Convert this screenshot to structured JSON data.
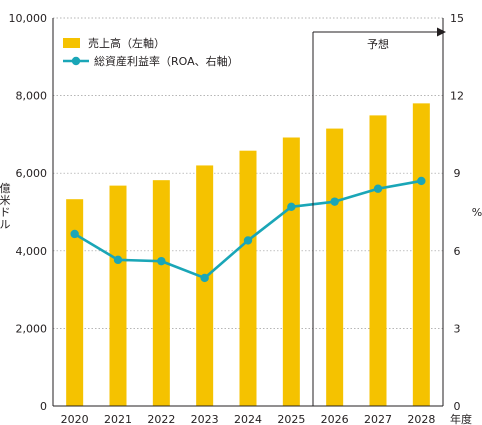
{
  "chart_data": {
    "type": "bar+line",
    "categories": [
      "2020",
      "2021",
      "2022",
      "2023",
      "2024",
      "2025",
      "2026",
      "2027",
      "2028"
    ],
    "x_axis_unit": "年度",
    "y_left": {
      "label": "億米ドル",
      "min": 0,
      "max": 10000,
      "ticks": [
        "0",
        "2,000",
        "4,000",
        "6,000",
        "8,000",
        "10,000"
      ],
      "tick_values": [
        0,
        2000,
        4000,
        6000,
        8000,
        10000
      ]
    },
    "y_right": {
      "label": "%",
      "min": 0,
      "max": 15,
      "ticks": [
        "0",
        "3",
        "6",
        "9",
        "12",
        "15"
      ],
      "tick_values": [
        0,
        3,
        6,
        9,
        12,
        15
      ]
    },
    "series": [
      {
        "name": "売上高（左軸）",
        "type": "bar",
        "axis": "left",
        "color": "#f5c200",
        "values": [
          5330,
          5680,
          5820,
          6200,
          6580,
          6920,
          7150,
          7490,
          7800
        ]
      },
      {
        "name": "総資産利益率（ROA、右軸）",
        "type": "line",
        "axis": "right",
        "color": "#1aa6b7",
        "values": [
          6.65,
          5.65,
          5.6,
          4.95,
          6.4,
          7.7,
          7.9,
          8.4,
          8.7
        ]
      }
    ],
    "forecast": {
      "label": "予想",
      "start_category": "2026"
    },
    "legend_position": "top-left",
    "grid": true
  }
}
